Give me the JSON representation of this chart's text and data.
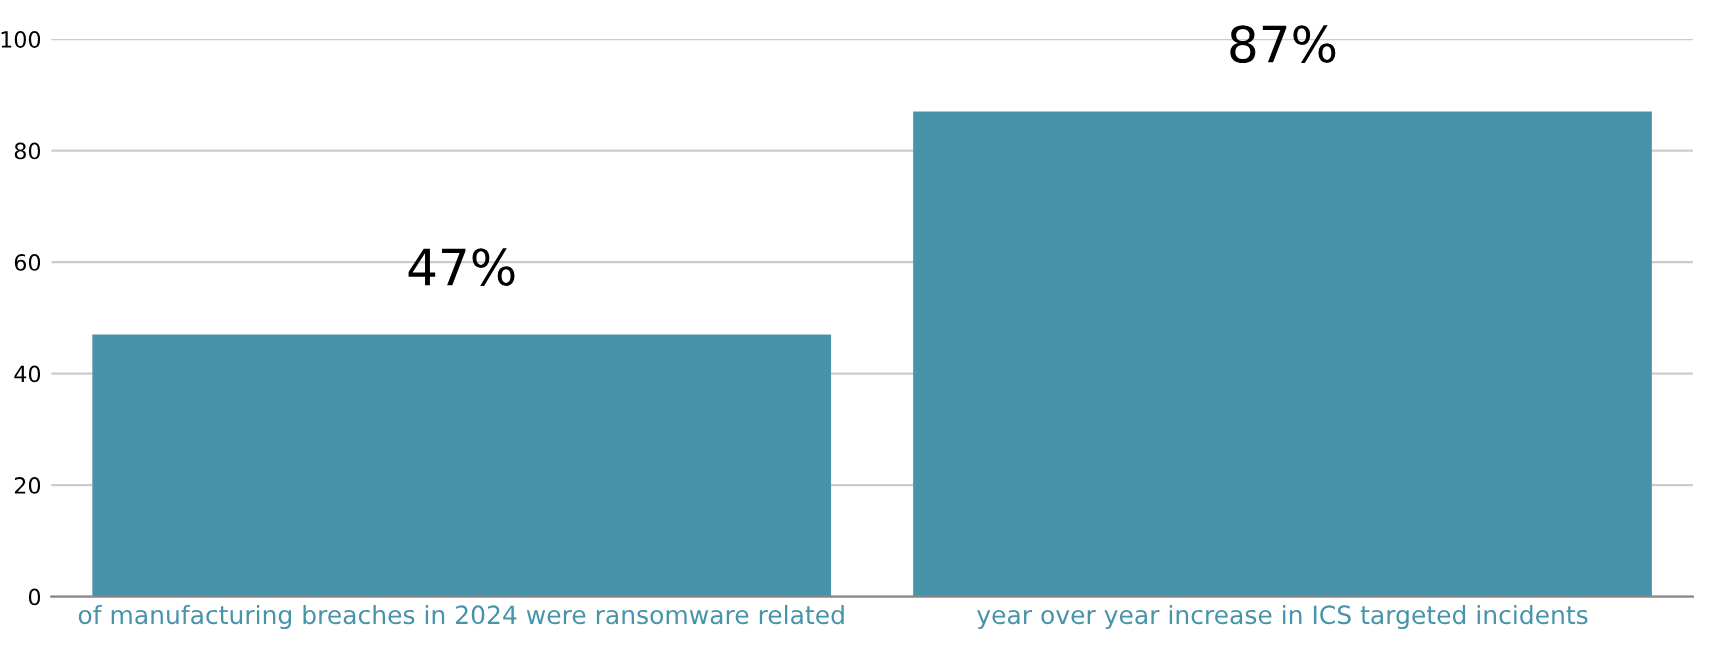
{
  "chart_data": {
    "type": "bar",
    "categories": [
      "of manufacturing breaches in 2024 were ransomware related",
      "year over year increase in ICS targeted incidents"
    ],
    "values": [
      47,
      87
    ],
    "value_labels": [
      "47%",
      "87%"
    ],
    "color": "#4693aa",
    "ylim": [
      0,
      100
    ],
    "yticks": [
      0,
      20,
      40,
      60,
      80,
      100
    ],
    "grid": "y"
  }
}
